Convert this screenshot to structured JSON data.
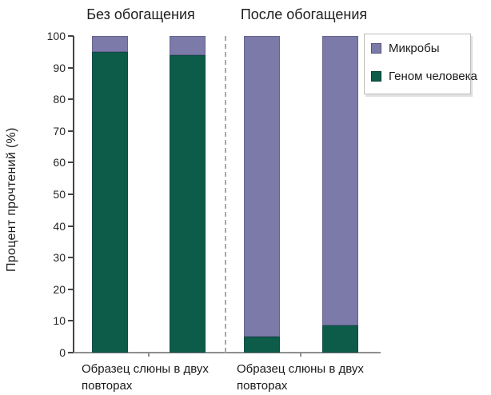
{
  "chart_data": {
    "type": "bar",
    "stacked": true,
    "group_titles": [
      "Без обогащения",
      "После обогащения"
    ],
    "ylabel": "Процент прочтений (%)",
    "ylim": [
      0,
      100
    ],
    "yticks": [
      0,
      10,
      20,
      30,
      40,
      50,
      60,
      70,
      80,
      90,
      100
    ],
    "categories": [
      "Образец слюны в двух повторах",
      "Образец слюны в двух повторах"
    ],
    "xlabel_lines": [
      [
        "Образец слюны в двух",
        "повторах"
      ],
      [
        "Образец слюны в двух",
        "повторах"
      ]
    ],
    "bars_per_group": 2,
    "series": [
      {
        "name": "Геном человека",
        "color": "#0d5c4a",
        "values": [
          95,
          94,
          5,
          8.5
        ]
      },
      {
        "name": "Микробы",
        "color": "#7b7aa8",
        "values": [
          5,
          6,
          95,
          91.5
        ]
      }
    ],
    "legend": {
      "position": "top-right",
      "order": [
        "Микробы",
        "Геном человека"
      ]
    },
    "separator": "dashed vertical line between groups",
    "grid": false
  }
}
